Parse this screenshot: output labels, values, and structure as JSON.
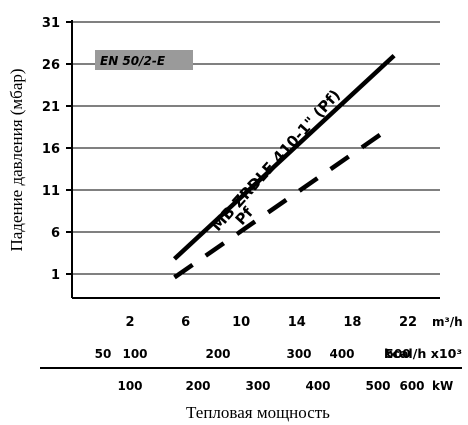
{
  "chart_data": {
    "type": "line",
    "model_label": "EN 50/2-E",
    "ylabel": "Падение давления (мбар)",
    "xlabel": "Тепловая мощность",
    "y_ticks": [
      "31",
      "26",
      "21",
      "16",
      "11",
      "6",
      "1"
    ],
    "ylim": [
      0,
      31
    ],
    "x_axis_flow": {
      "unit": "m³/h",
      "ticks": [
        "2",
        "6",
        "10",
        "14",
        "18",
        "22"
      ],
      "range": [
        0,
        24
      ]
    },
    "x_axis_kcal": {
      "unit": "kcal/h x10³",
      "ticks": [
        "50",
        "100",
        "200",
        "300",
        "400",
        "500"
      ]
    },
    "x_axis_kw": {
      "unit": "kW",
      "ticks": [
        "100",
        "200",
        "300",
        "400",
        "500",
        "600"
      ]
    },
    "grid": {
      "horizontal": true,
      "vertical": false
    },
    "series": [
      {
        "name": "MB ZRDLE 410-1\" (Pf)",
        "style": "solid",
        "x": [
          5.2,
          21
        ],
        "y": [
          2.8,
          27
        ]
      },
      {
        "name": "Pf",
        "style": "dashed",
        "x": [
          5.2,
          20.8
        ],
        "y": [
          0.6,
          18.5
        ]
      }
    ]
  }
}
